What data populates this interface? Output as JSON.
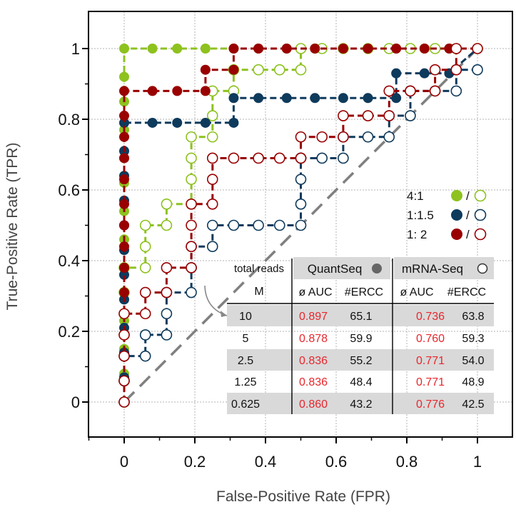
{
  "chart_data": {
    "type": "line",
    "title": "",
    "xlabel": "False-Positive Rate (FPR)",
    "ylabel": "True-Positive Rate (TPR)",
    "xlim": [
      -0.1,
      1.05
    ],
    "ylim": [
      -0.1,
      1.1
    ],
    "xticks": [
      0,
      0.2,
      0.4,
      0.6,
      0.8,
      1
    ],
    "xtick_labels": [
      "0",
      "0.2",
      "0.4",
      "0.6",
      "0.8",
      "1"
    ],
    "yticks": [
      0,
      0.2,
      0.4,
      0.6,
      0.8,
      1
    ],
    "ytick_labels": [
      "0",
      "0.2",
      "0.4",
      "0.6",
      "0.8",
      "1"
    ],
    "grid": true,
    "diagonal": [
      [
        0,
        0
      ],
      [
        1,
        1
      ]
    ],
    "colors": {
      "g": "#8dc21f",
      "b": "#0e3a5c",
      "r": "#990000",
      "grid": "#b3b3b3",
      "diag": "#808080"
    },
    "series": [
      {
        "name": "4:1 QuantSeq",
        "color": "g",
        "filled": true,
        "points": [
          [
            0,
            0
          ],
          [
            0,
            0.08
          ],
          [
            0,
            0.15
          ],
          [
            0,
            0.23
          ],
          [
            0,
            0.31
          ],
          [
            0,
            0.38
          ],
          [
            0,
            0.46
          ],
          [
            0,
            0.54
          ],
          [
            0,
            0.62
          ],
          [
            0,
            0.69
          ],
          [
            0,
            0.77
          ],
          [
            0,
            0.85
          ],
          [
            0,
            0.92
          ],
          [
            0,
            1
          ],
          [
            0.08,
            1
          ],
          [
            0.15,
            1
          ],
          [
            0.23,
            1
          ],
          [
            0.31,
            1
          ],
          [
            0.38,
            1
          ],
          [
            0.46,
            1
          ],
          [
            0.54,
            1
          ],
          [
            0.62,
            1
          ],
          [
            0.69,
            1
          ],
          [
            0.77,
            1
          ],
          [
            0.85,
            1
          ],
          [
            0.92,
            1
          ],
          [
            1,
            1
          ]
        ]
      },
      {
        "name": "4:1 mRNA-Seq",
        "color": "g",
        "filled": false,
        "points": [
          [
            0,
            0
          ],
          [
            0,
            0.06
          ],
          [
            0,
            0.13
          ],
          [
            0,
            0.19
          ],
          [
            0,
            0.25
          ],
          [
            0,
            0.31
          ],
          [
            0,
            0.38
          ],
          [
            0.06,
            0.38
          ],
          [
            0.06,
            0.44
          ],
          [
            0.06,
            0.5
          ],
          [
            0.12,
            0.5
          ],
          [
            0.12,
            0.56
          ],
          [
            0.19,
            0.56
          ],
          [
            0.19,
            0.63
          ],
          [
            0.19,
            0.69
          ],
          [
            0.19,
            0.75
          ],
          [
            0.25,
            0.75
          ],
          [
            0.25,
            0.81
          ],
          [
            0.25,
            0.88
          ],
          [
            0.31,
            0.88
          ],
          [
            0.31,
            0.94
          ],
          [
            0.38,
            0.94
          ],
          [
            0.44,
            0.94
          ],
          [
            0.5,
            0.94
          ],
          [
            0.5,
            1
          ],
          [
            0.56,
            1
          ],
          [
            0.62,
            1
          ],
          [
            0.69,
            1
          ],
          [
            0.75,
            1
          ],
          [
            0.81,
            1
          ],
          [
            0.88,
            1
          ],
          [
            0.94,
            1
          ],
          [
            1,
            1
          ]
        ]
      },
      {
        "name": "1:1.5 QuantSeq",
        "color": "b",
        "filled": true,
        "points": [
          [
            0,
            0
          ],
          [
            0,
            0.07
          ],
          [
            0,
            0.14
          ],
          [
            0,
            0.21
          ],
          [
            0,
            0.29
          ],
          [
            0,
            0.36
          ],
          [
            0,
            0.43
          ],
          [
            0,
            0.5
          ],
          [
            0,
            0.57
          ],
          [
            0,
            0.64
          ],
          [
            0,
            0.71
          ],
          [
            0,
            0.79
          ],
          [
            0.08,
            0.79
          ],
          [
            0.15,
            0.79
          ],
          [
            0.23,
            0.79
          ],
          [
            0.31,
            0.79
          ],
          [
            0.31,
            0.86
          ],
          [
            0.38,
            0.86
          ],
          [
            0.46,
            0.86
          ],
          [
            0.54,
            0.86
          ],
          [
            0.62,
            0.86
          ],
          [
            0.69,
            0.86
          ],
          [
            0.77,
            0.86
          ],
          [
            0.77,
            0.93
          ],
          [
            0.85,
            0.93
          ],
          [
            0.92,
            0.93
          ],
          [
            1,
            1
          ]
        ]
      },
      {
        "name": "1:1.5 mRNA-Seq",
        "color": "b",
        "filled": false,
        "points": [
          [
            0,
            0
          ],
          [
            0,
            0.06
          ],
          [
            0,
            0.13
          ],
          [
            0.06,
            0.13
          ],
          [
            0.06,
            0.19
          ],
          [
            0.12,
            0.19
          ],
          [
            0.12,
            0.25
          ],
          [
            0.12,
            0.31
          ],
          [
            0.19,
            0.31
          ],
          [
            0.19,
            0.38
          ],
          [
            0.19,
            0.44
          ],
          [
            0.25,
            0.44
          ],
          [
            0.25,
            0.5
          ],
          [
            0.31,
            0.5
          ],
          [
            0.38,
            0.5
          ],
          [
            0.44,
            0.5
          ],
          [
            0.5,
            0.5
          ],
          [
            0.5,
            0.56
          ],
          [
            0.5,
            0.63
          ],
          [
            0.5,
            0.69
          ],
          [
            0.56,
            0.69
          ],
          [
            0.62,
            0.69
          ],
          [
            0.62,
            0.75
          ],
          [
            0.69,
            0.75
          ],
          [
            0.75,
            0.75
          ],
          [
            0.75,
            0.81
          ],
          [
            0.81,
            0.81
          ],
          [
            0.81,
            0.88
          ],
          [
            0.88,
            0.88
          ],
          [
            0.94,
            0.88
          ],
          [
            0.94,
            0.94
          ],
          [
            1,
            0.94
          ]
        ]
      },
      {
        "name": "1:2 QuantSeq",
        "color": "r",
        "filled": true,
        "points": [
          [
            0,
            0
          ],
          [
            0,
            0.06
          ],
          [
            0,
            0.13
          ],
          [
            0,
            0.19
          ],
          [
            0,
            0.25
          ],
          [
            0,
            0.31
          ],
          [
            0,
            0.38
          ],
          [
            0,
            0.44
          ],
          [
            0,
            0.5
          ],
          [
            0,
            0.56
          ],
          [
            0,
            0.63
          ],
          [
            0,
            0.69
          ],
          [
            0,
            0.75
          ],
          [
            0,
            0.81
          ],
          [
            0,
            0.88
          ],
          [
            0.08,
            0.88
          ],
          [
            0.15,
            0.88
          ],
          [
            0.23,
            0.88
          ],
          [
            0.23,
            0.94
          ],
          [
            0.31,
            0.94
          ],
          [
            0.31,
            1
          ],
          [
            0.38,
            1
          ],
          [
            0.46,
            1
          ],
          [
            0.54,
            1
          ],
          [
            0.62,
            1
          ],
          [
            0.69,
            1
          ],
          [
            0.77,
            1
          ],
          [
            0.85,
            1
          ],
          [
            0.92,
            1
          ],
          [
            1,
            1
          ]
        ]
      },
      {
        "name": "1:2 mRNA-Seq",
        "color": "r",
        "filled": false,
        "points": [
          [
            0,
            0
          ],
          [
            0,
            0.06
          ],
          [
            0,
            0.13
          ],
          [
            0,
            0.19
          ],
          [
            0,
            0.25
          ],
          [
            0.06,
            0.25
          ],
          [
            0.06,
            0.31
          ],
          [
            0.12,
            0.31
          ],
          [
            0.12,
            0.38
          ],
          [
            0.19,
            0.38
          ],
          [
            0.19,
            0.44
          ],
          [
            0.19,
            0.5
          ],
          [
            0.19,
            0.56
          ],
          [
            0.25,
            0.56
          ],
          [
            0.25,
            0.63
          ],
          [
            0.25,
            0.69
          ],
          [
            0.31,
            0.69
          ],
          [
            0.38,
            0.69
          ],
          [
            0.44,
            0.69
          ],
          [
            0.5,
            0.69
          ],
          [
            0.5,
            0.75
          ],
          [
            0.56,
            0.75
          ],
          [
            0.62,
            0.75
          ],
          [
            0.62,
            0.81
          ],
          [
            0.69,
            0.81
          ],
          [
            0.75,
            0.81
          ],
          [
            0.75,
            0.88
          ],
          [
            0.81,
            0.88
          ],
          [
            0.88,
            0.88
          ],
          [
            0.88,
            0.94
          ],
          [
            0.94,
            0.94
          ],
          [
            0.94,
            1
          ],
          [
            1,
            1
          ]
        ]
      }
    ],
    "legend": {
      "position": "right",
      "entries": [
        {
          "label": "4:1",
          "color": "g",
          "sep": "/"
        },
        {
          "label": "1:1.5",
          "color": "b",
          "sep": "/"
        },
        {
          "label": "1: 2",
          "color": "r",
          "sep": "/"
        }
      ]
    },
    "table": {
      "header_label": "total reads",
      "sub_label": "M",
      "group1": "QuantSeq",
      "group2": "mRNA-Seq",
      "col_auc": "ø AUC",
      "col_ercc": "#ERCC",
      "rows": [
        {
          "reads": "10",
          "q_auc": "0.897",
          "q_ercc": "65.1",
          "m_auc": "0.736",
          "m_ercc": "63.8",
          "shaded": true
        },
        {
          "reads": "5",
          "q_auc": "0.878",
          "q_ercc": "59.9",
          "m_auc": "0.760",
          "m_ercc": "59.3",
          "shaded": false
        },
        {
          "reads": "2.5",
          "q_auc": "0.836",
          "q_ercc": "55.2",
          "m_auc": "0.771",
          "m_ercc": "54.0",
          "shaded": true
        },
        {
          "reads": "1.25",
          "q_auc": "0.836",
          "q_ercc": "48.4",
          "m_auc": "0.771",
          "m_ercc": "48.9",
          "shaded": false
        },
        {
          "reads": "0.625",
          "q_auc": "0.860",
          "q_ercc": "43.2",
          "m_auc": "0.776",
          "m_ercc": "42.5",
          "shaded": true
        }
      ],
      "auc_color": "#e8262d"
    }
  }
}
